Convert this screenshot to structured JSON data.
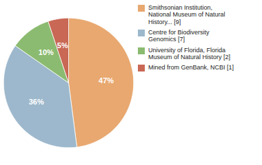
{
  "chart_data": {
    "type": "pie",
    "categories": [
      "Smithsonian Institution,\nNational Museum of Natural\nHistory... [9]",
      "Centre for Biodiversity\nGenomics [7]",
      "University of Florida, Florida\nMuseum of Natural History [2]",
      "Mined from GenBank, NCBI [1]"
    ],
    "values": [
      47,
      36,
      10,
      5
    ],
    "value_labels": [
      "47%",
      "36%",
      "10%",
      "5%"
    ],
    "colors": [
      "#E8A870",
      "#9DB8CC",
      "#8BBB70",
      "#C86855"
    ],
    "data_labels": true,
    "legend": "right"
  }
}
